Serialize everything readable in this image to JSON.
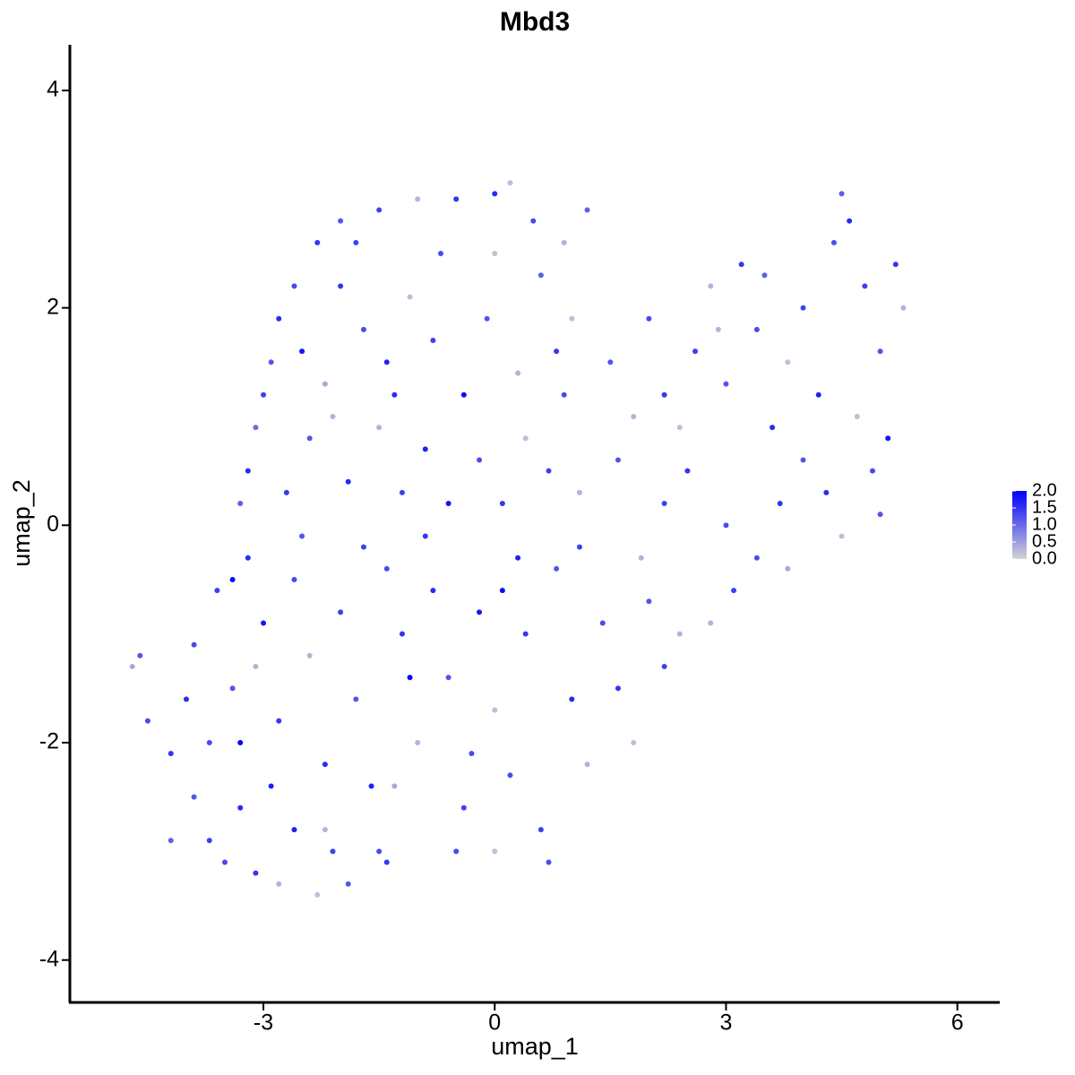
{
  "chart_data": {
    "type": "scatter",
    "title": "Mbd3",
    "x_label": "umap_1",
    "y_label": "umap_2",
    "xlim": [
      -5.51,
      6.55
    ],
    "ylim": [
      -4.39,
      4.42
    ],
    "xticks": [
      -3,
      0,
      3,
      6
    ],
    "yticks": [
      -4,
      -2,
      0,
      2,
      4
    ],
    "low_color": "#d3d3d3",
    "high_color": "#0000ff",
    "colorlim": [
      0,
      2.0
    ],
    "colorticks": [
      {
        "value": 0,
        "label": "0.0"
      },
      {
        "value": 0.5,
        "label": "0.5"
      },
      {
        "value": 1,
        "label": "1.0"
      },
      {
        "value": 1.5,
        "label": "1.5"
      },
      {
        "value": 2,
        "label": "2.0"
      }
    ],
    "x": [
      -2.0,
      -1.5,
      -1.0,
      -0.5,
      0,
      0.2,
      0.5,
      0.9,
      1.2,
      -2.3,
      -2.6,
      -2.8,
      -2.9,
      -3.0,
      -3.1,
      -3.2,
      -3.3,
      -2.5,
      -2.2,
      -2.0,
      -1.7,
      -1.4,
      -1.1,
      -0.8,
      -0.4,
      -0.1,
      0.3,
      0.6,
      0.8,
      1.0,
      -2.4,
      -1.9,
      -1.5,
      -1.2,
      -0.9,
      -0.6,
      -0.2,
      0.1,
      0.4,
      0.7,
      0.9,
      1.1,
      -2.7,
      -2.1,
      -1.3,
      -0.7,
      -1.8,
      0.0,
      1.5,
      1.8,
      2.0,
      2.2,
      2.4,
      2.6,
      2.8,
      3.0,
      3.2,
      3.4,
      3.6,
      3.8,
      4.0,
      4.2,
      4.4,
      4.5,
      4.6,
      4.8,
      5.0,
      5.2,
      5.3,
      5.1,
      4.9,
      4.7,
      4.3,
      4.0,
      3.7,
      3.4,
      3.1,
      2.8,
      4.5,
      5.0,
      2.2,
      1.6,
      1.9,
      2.5,
      3.0,
      3.8,
      3.5,
      2.9,
      -4.7,
      -4.6,
      -4.5,
      -4.2,
      -4.0,
      -3.9,
      -3.7,
      -3.5,
      -3.3,
      -3.1,
      -2.8,
      -2.6,
      -2.3,
      -2.1,
      -1.9,
      -1.5,
      -1.4,
      -3.9,
      -3.6,
      -3.4,
      -3.2,
      -3.0,
      -2.8,
      -2.6,
      -2.4,
      -2.2,
      -2.0,
      -1.8,
      -1.6,
      -1.4,
      -1.2,
      -1.0,
      -0.8,
      -0.6,
      -0.4,
      -0.2,
      0.0,
      0.2,
      0.4,
      0.6,
      0.8,
      1.0,
      1.2,
      1.4,
      1.6,
      1.8,
      2.0,
      2.2,
      2.4,
      0.0,
      -0.5,
      0.7,
      -3.7,
      -2.9,
      -2.5,
      -1.7,
      -0.9,
      0.3,
      1.1,
      -3.3,
      -3.4,
      -1.1,
      0.1,
      -4.2,
      -3.1,
      -2.2,
      -1.3,
      -0.3
    ],
    "y": [
      2.8,
      2.9,
      3.0,
      3.0,
      3.05,
      3.15,
      2.8,
      2.6,
      2.9,
      2.6,
      2.2,
      1.9,
      1.5,
      1.2,
      0.9,
      0.5,
      0.2,
      1.6,
      1.3,
      2.2,
      1.8,
      1.5,
      2.1,
      1.7,
      1.2,
      1.9,
      1.4,
      2.3,
      1.6,
      1.9,
      0.8,
      0.4,
      0.9,
      0.3,
      0.7,
      0.2,
      0.6,
      0.2,
      0.8,
      0.5,
      1.2,
      0.3,
      0.3,
      1.0,
      1.2,
      2.5,
      2.6,
      2.5,
      1.5,
      1.0,
      1.9,
      1.2,
      0.9,
      1.6,
      2.2,
      1.3,
      2.4,
      1.8,
      0.9,
      1.5,
      2.0,
      1.2,
      2.6,
      3.05,
      2.8,
      2.2,
      1.6,
      2.4,
      2.0,
      0.8,
      0.5,
      1.0,
      0.3,
      0.6,
      0.2,
      -0.3,
      -0.6,
      -0.9,
      -0.1,
      0.1,
      0.2,
      0.6,
      -0.3,
      0.5,
      0.0,
      -0.4,
      2.3,
      1.8,
      -1.3,
      -1.2,
      -1.8,
      -2.1,
      -1.6,
      -2.5,
      -2.9,
      -3.1,
      -2.6,
      -3.2,
      -3.3,
      -2.8,
      -3.4,
      -3.0,
      -3.3,
      -3.0,
      -3.1,
      -1.1,
      -0.6,
      -1.5,
      -0.3,
      -0.9,
      -1.8,
      -0.5,
      -1.2,
      -2.2,
      -0.8,
      -1.6,
      -2.4,
      -0.4,
      -1.0,
      -2.0,
      -0.6,
      -1.4,
      -2.6,
      -0.8,
      -1.7,
      -2.3,
      -1.0,
      -2.8,
      -0.4,
      -1.6,
      -2.2,
      -0.9,
      -1.5,
      -2.0,
      -0.7,
      -1.3,
      -1.0,
      -3.0,
      -3.0,
      -3.1,
      -2.0,
      -2.4,
      -0.1,
      -0.2,
      -0.1,
      -0.3,
      -0.2,
      -2.0,
      -0.5,
      -1.4,
      -0.6,
      -2.9,
      -1.3,
      -2.8,
      -2.4,
      -2.1
    ],
    "values": [
      1.2,
      1.4,
      0.3,
      1.5,
      1.6,
      0.2,
      1.3,
      0.3,
      1.1,
      1.5,
      1.3,
      1.6,
      1.2,
      1.4,
      1.0,
      1.6,
      1.1,
      1.8,
      0.4,
      1.5,
      1.3,
      1.7,
      0.2,
      1.4,
      1.9,
      1.2,
      0.3,
      1.1,
      1.5,
      0.2,
      1.2,
      1.6,
      0.3,
      1.4,
      1.7,
      1.8,
      1.3,
      1.5,
      0.2,
      1.4,
      1.3,
      0.3,
      1.5,
      0.3,
      1.6,
      1.3,
      1.4,
      0.2,
      1.2,
      0.3,
      1.3,
      1.5,
      0.2,
      1.4,
      0.3,
      1.2,
      1.5,
      1.3,
      1.6,
      0.2,
      1.4,
      1.7,
      1.3,
      1.1,
      1.6,
      1.4,
      1.2,
      1.5,
      0.3,
      1.8,
      1.3,
      0.2,
      1.6,
      1.2,
      1.5,
      1.3,
      1.4,
      0.3,
      0.2,
      1.2,
      1.4,
      1.2,
      0.3,
      1.5,
      1.3,
      0.4,
      1.1,
      0.3,
      0.4,
      1.2,
      1.3,
      1.5,
      1.6,
      1.2,
      1.4,
      1.3,
      1.6,
      1.5,
      0.3,
      1.7,
      0.2,
      1.4,
      1.2,
      1.3,
      1.5,
      1.3,
      1.4,
      1.2,
      1.6,
      1.8,
      1.5,
      1.3,
      0.3,
      1.6,
      1.4,
      1.2,
      1.7,
      1.3,
      1.5,
      0.3,
      1.6,
      1.2,
      1.4,
      1.8,
      0.2,
      1.3,
      1.5,
      1.4,
      1.2,
      1.6,
      0.3,
      1.3,
      1.5,
      0.2,
      1.2,
      1.4,
      0.3,
      0.2,
      1.3,
      1.3,
      1.3,
      1.7,
      1.2,
      1.4,
      1.5,
      1.7,
      1.4,
      2.0,
      1.9,
      2.0,
      1.9,
      1.1,
      0.3,
      0.3,
      0.4,
      1.3
    ]
  }
}
